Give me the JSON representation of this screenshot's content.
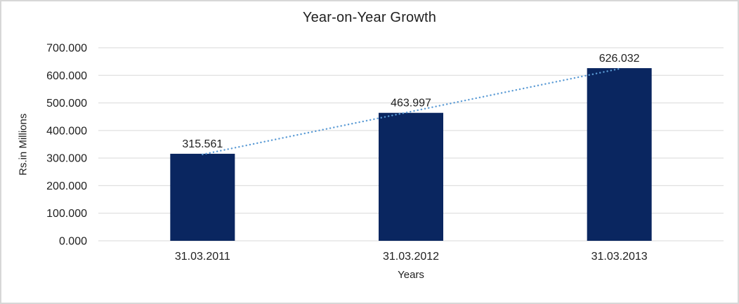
{
  "chart_data": {
    "type": "bar",
    "title": "Year-on-Year Growth",
    "xlabel": "Years",
    "ylabel": "Rs.in Millions",
    "categories": [
      "31.03.2011",
      "31.03.2012",
      "31.03.2013"
    ],
    "series": [
      {
        "name": "Year-on-Year Growth",
        "values": [
          315.561,
          463.997,
          626.032
        ]
      }
    ],
    "value_labels": [
      "315.561",
      "463.997",
      "626.032"
    ],
    "ylim": [
      0,
      700
    ],
    "y_ticks": [
      0,
      100,
      200,
      300,
      400,
      500,
      600,
      700
    ],
    "y_tick_labels": [
      "0.000",
      "100.000",
      "200.000",
      "300.000",
      "400.000",
      "500.000",
      "600.000",
      "700.000"
    ],
    "grid": true,
    "legend_position": "none",
    "trendline": {
      "type": "linear",
      "style": "dotted"
    }
  },
  "colors": {
    "bar": "#0A2660",
    "trendline": "#5B9BD5",
    "gridline": "#D9D9D9",
    "axis_line": "#D9D9D9",
    "text": "#1F1F1F",
    "border": "#D7D7D7",
    "background": "#FFFFFF"
  }
}
